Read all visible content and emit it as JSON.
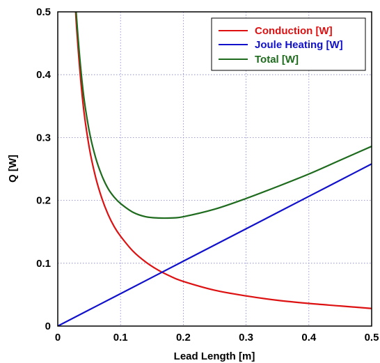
{
  "chart_data": {
    "type": "line",
    "title": "",
    "xlabel": "Lead Length  [m]",
    "ylabel": "Q  [W]",
    "xlim": [
      0,
      0.5
    ],
    "ylim": [
      0,
      0.5
    ],
    "x_ticks": [
      "0",
      "0.1",
      "0.2",
      "0.3",
      "0.4",
      "0.5"
    ],
    "y_ticks": [
      "0",
      "0.1",
      "0.2",
      "0.3",
      "0.4",
      "0.5"
    ],
    "grid": true,
    "legend_position": "top-right",
    "series": [
      {
        "name": "Conduction  [W]",
        "color": "#dd1111",
        "x": [
          0.025,
          0.03,
          0.04,
          0.05,
          0.06,
          0.07,
          0.08,
          0.09,
          0.1,
          0.12,
          0.14,
          0.16,
          0.18,
          0.2,
          0.25,
          0.3,
          0.35,
          0.4,
          0.45,
          0.5
        ],
        "values": [
          0.57,
          0.475,
          0.356,
          0.285,
          0.238,
          0.204,
          0.178,
          0.158,
          0.143,
          0.119,
          0.102,
          0.089,
          0.079,
          0.071,
          0.057,
          0.048,
          0.041,
          0.036,
          0.032,
          0.028
        ]
      },
      {
        "name": "Joule Heating  [W]",
        "color": "#1111cc",
        "x": [
          0,
          0.1,
          0.2,
          0.3,
          0.4,
          0.5
        ],
        "values": [
          0,
          0.0516,
          0.1032,
          0.1548,
          0.2064,
          0.258
        ]
      },
      {
        "name": "Total  [W]",
        "color": "#1e6b1e",
        "x": [
          0.025,
          0.03,
          0.04,
          0.05,
          0.06,
          0.07,
          0.08,
          0.09,
          0.1,
          0.12,
          0.14,
          0.16,
          0.18,
          0.2,
          0.25,
          0.3,
          0.35,
          0.4,
          0.45,
          0.5
        ],
        "values": [
          0.583,
          0.49,
          0.377,
          0.311,
          0.269,
          0.24,
          0.219,
          0.205,
          0.195,
          0.181,
          0.174,
          0.172,
          0.172,
          0.174,
          0.186,
          0.203,
          0.222,
          0.242,
          0.264,
          0.286
        ]
      }
    ]
  }
}
